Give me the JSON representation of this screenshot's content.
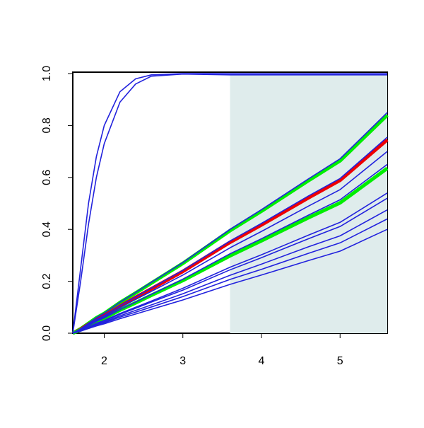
{
  "chart_data": {
    "type": "line",
    "x": [
      1.6,
      1.7,
      1.8,
      1.9,
      2.0,
      2.2,
      2.4,
      2.6,
      3.0,
      3.6,
      4.0,
      4.6,
      5.0,
      5.6
    ],
    "series": [
      {
        "color": "#00ee00",
        "values": [
          0,
          0.017,
          0.038,
          0.059,
          0.076,
          0.118,
          0.155,
          0.193,
          0.269,
          0.395,
          0.47,
          0.588,
          0.664,
          0.84
        ]
      },
      {
        "color": "#ee0000",
        "values": [
          0,
          0.015,
          0.034,
          0.052,
          0.067,
          0.104,
          0.138,
          0.171,
          0.238,
          0.35,
          0.417,
          0.522,
          0.589,
          0.745
        ]
      },
      {
        "color": "#00ee00",
        "values": [
          0,
          0.013,
          0.029,
          0.044,
          0.057,
          0.089,
          0.117,
          0.146,
          0.203,
          0.298,
          0.356,
          0.445,
          0.502,
          0.635
        ]
      },
      {
        "color": "#2222dd",
        "values": [
          0,
          0.25,
          0.5,
          0.68,
          0.8,
          0.93,
          0.98,
          0.995,
          1,
          1,
          1,
          1,
          1,
          1
        ]
      },
      {
        "color": "#2222dd",
        "values": [
          0,
          0.2,
          0.42,
          0.6,
          0.73,
          0.89,
          0.96,
          0.99,
          0.998,
          0.995,
          0.995,
          0.995,
          0.995,
          0.995
        ]
      },
      {
        "color": "#2222dd",
        "values": [
          0,
          0.017,
          0.038,
          0.06,
          0.077,
          0.119,
          0.157,
          0.196,
          0.272,
          0.4,
          0.476,
          0.595,
          0.672,
          0.85
        ]
      },
      {
        "color": "#2222dd",
        "values": [
          0,
          0.015,
          0.034,
          0.053,
          0.068,
          0.106,
          0.14,
          0.174,
          0.242,
          0.355,
          0.423,
          0.529,
          0.596,
          0.755
        ]
      },
      {
        "color": "#2222dd",
        "values": [
          0,
          0.014,
          0.032,
          0.049,
          0.063,
          0.098,
          0.13,
          0.161,
          0.224,
          0.329,
          0.392,
          0.49,
          0.553,
          0.7
        ]
      },
      {
        "color": "#2222dd",
        "values": [
          0,
          0.013,
          0.029,
          0.046,
          0.059,
          0.091,
          0.12,
          0.15,
          0.208,
          0.306,
          0.364,
          0.455,
          0.514,
          0.65
        ]
      },
      {
        "color": "#2222dd",
        "values": [
          0,
          0.011,
          0.024,
          0.038,
          0.049,
          0.076,
          0.1,
          0.124,
          0.173,
          0.254,
          0.302,
          0.378,
          0.427,
          0.54
        ]
      },
      {
        "color": "#2222dd",
        "values": [
          0,
          0.01,
          0.023,
          0.036,
          0.047,
          0.073,
          0.096,
          0.12,
          0.166,
          0.244,
          0.291,
          0.364,
          0.411,
          0.52
        ]
      },
      {
        "color": "#2222dd",
        "values": [
          0,
          0.01,
          0.021,
          0.033,
          0.043,
          0.067,
          0.088,
          0.109,
          0.152,
          0.223,
          0.266,
          0.333,
          0.375,
          0.475
        ]
      },
      {
        "color": "#2222dd",
        "values": [
          0,
          0.009,
          0.02,
          0.031,
          0.04,
          0.062,
          0.081,
          0.101,
          0.141,
          0.207,
          0.246,
          0.308,
          0.348,
          0.44
        ]
      },
      {
        "color": "#2222dd",
        "values": [
          0,
          0.008,
          0.018,
          0.028,
          0.036,
          0.056,
          0.074,
          0.092,
          0.128,
          0.188,
          0.224,
          0.28,
          0.316,
          0.4
        ]
      }
    ],
    "shade": {
      "x": [
        3.6,
        5.6
      ],
      "color": "#dfecec"
    },
    "xlim": [
      1.6,
      5.6
    ],
    "xticks": [
      2,
      3,
      4,
      5
    ],
    "ylim": [
      0,
      1
    ],
    "yticks": [
      {
        "value": 0,
        "label": "0.0"
      },
      0.2,
      0.4,
      0.6,
      0.8,
      {
        "value": 1,
        "label": "1.0"
      }
    ]
  }
}
